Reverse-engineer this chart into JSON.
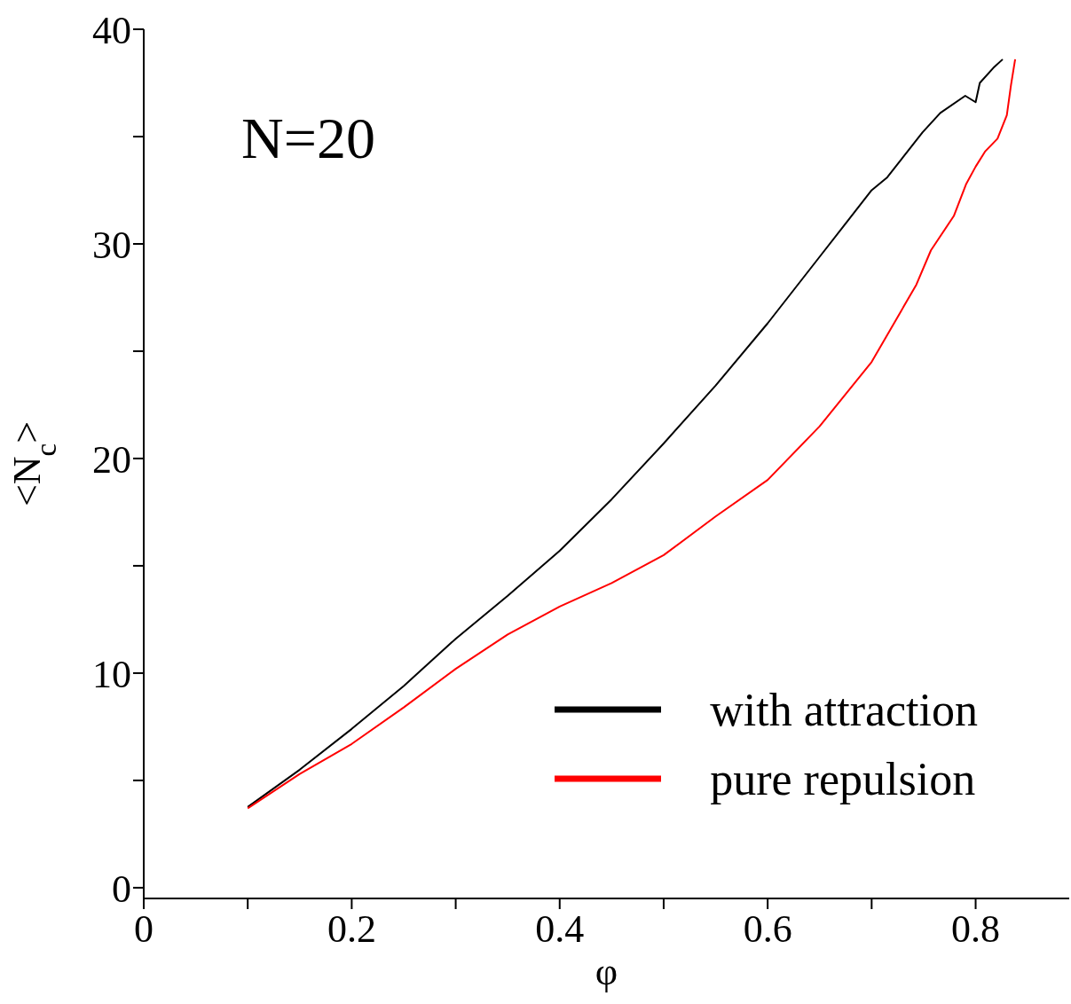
{
  "chart_data": {
    "type": "line",
    "xlabel": "φ",
    "ylabel": "<N$_{c}$>",
    "annotations": [
      "N=20"
    ],
    "xlim": [
      0,
      0.89
    ],
    "ylim": [
      -0.5,
      40
    ],
    "xticks": [
      0,
      {
        "value": 0.1,
        "label": null
      },
      0.2,
      {
        "value": 0.3,
        "label": null
      },
      0.4,
      {
        "value": 0.5,
        "label": null
      },
      0.6,
      {
        "value": 0.7,
        "label": null
      },
      0.8
    ],
    "yticks": [
      0,
      {
        "value": 5,
        "label": null
      },
      10,
      {
        "value": 15,
        "label": null
      },
      20,
      {
        "value": 25,
        "label": null
      },
      30,
      {
        "value": 35,
        "label": null
      },
      40
    ],
    "legend": "bottom right",
    "marker": "none",
    "line_style": "solid",
    "series": [
      {
        "name": "with attraction",
        "color": "#000000",
        "x": [
          0.1,
          0.15,
          0.2,
          0.25,
          0.3,
          0.35,
          0.4,
          0.45,
          0.5,
          0.55,
          0.6,
          0.65,
          0.7,
          0.715,
          0.749,
          0.766,
          0.79,
          0.8,
          0.804,
          0.817,
          0.826
        ],
        "values": [
          3.76,
          5.5,
          7.4,
          9.4,
          11.6,
          13.6,
          15.7,
          18.1,
          20.7,
          23.4,
          26.3,
          29.4,
          32.5,
          33.1,
          35.2,
          36.1,
          36.9,
          36.6,
          37.5,
          38.2,
          38.6
        ]
      },
      {
        "name": "pure repulsion",
        "color": "#ff0000",
        "x": [
          0.1,
          0.15,
          0.2,
          0.25,
          0.3,
          0.35,
          0.4,
          0.45,
          0.5,
          0.55,
          0.6,
          0.65,
          0.7,
          0.743,
          0.757,
          0.779,
          0.791,
          0.8,
          0.809,
          0.821,
          0.83,
          0.834,
          0.838
        ],
        "values": [
          3.7,
          5.3,
          6.7,
          8.4,
          10.2,
          11.8,
          13.1,
          14.2,
          15.5,
          17.3,
          19.0,
          21.5,
          24.5,
          28.1,
          29.7,
          31.3,
          32.8,
          33.6,
          34.3,
          34.9,
          36.0,
          37.4,
          38.6
        ]
      }
    ]
  }
}
